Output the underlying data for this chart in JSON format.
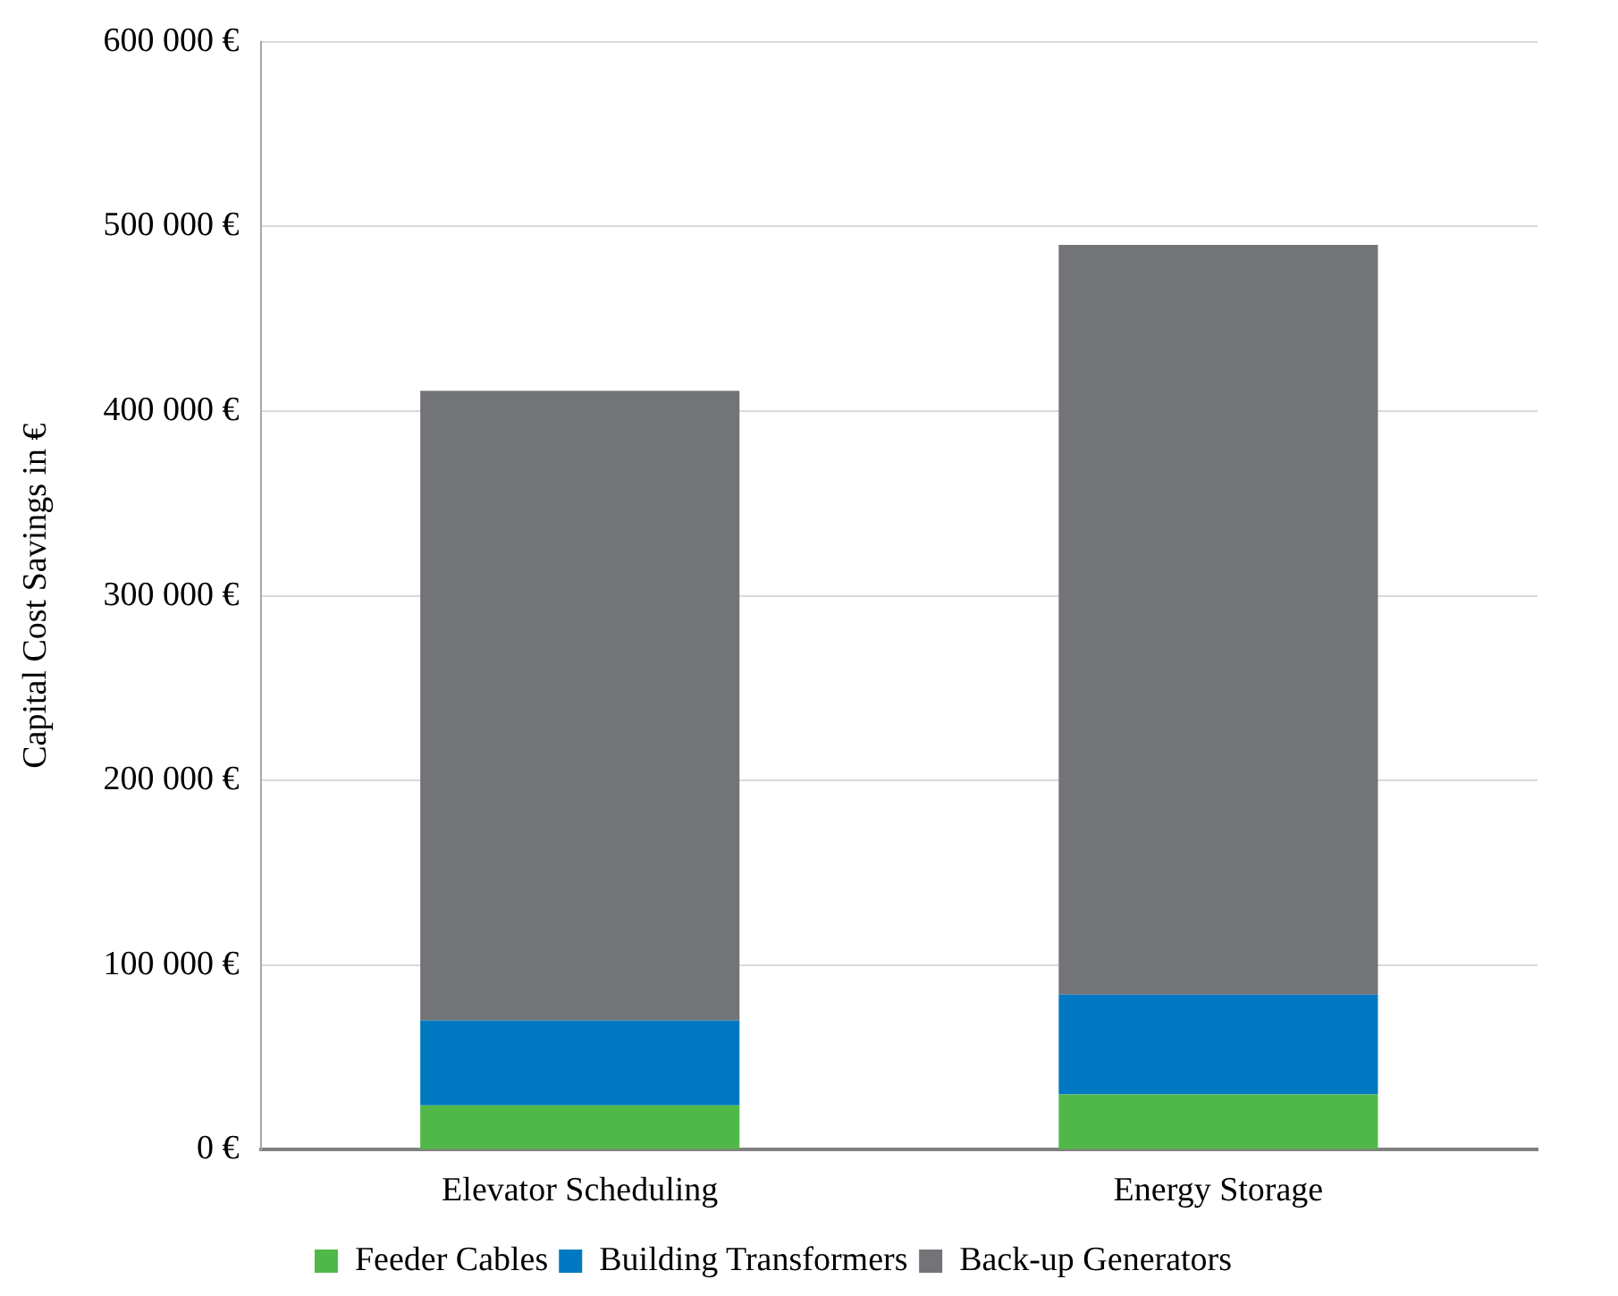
{
  "chart_data": {
    "type": "bar",
    "stacked": true,
    "ylabel": "Capital Cost Savings in €",
    "categories": [
      "Elevator Scheduling",
      "Energy Storage"
    ],
    "series": [
      {
        "name": "Feeder Cables",
        "color": "#50b848",
        "values": [
          24000,
          30000
        ]
      },
      {
        "name": "Building Transformers",
        "color": "#0079c2",
        "values": [
          46000,
          54000
        ]
      },
      {
        "name": "Back-up Generators",
        "color": "#737477",
        "values": [
          341000,
          406000
        ]
      }
    ],
    "ylim": [
      0,
      600000
    ],
    "yticks": [
      {
        "value": 0,
        "label": "0 €"
      },
      {
        "value": 100000,
        "label": "100 000 €"
      },
      {
        "value": 200000,
        "label": "200 000 €"
      },
      {
        "value": 300000,
        "label": "300 000 €"
      },
      {
        "value": 400000,
        "label": "400 000 €"
      },
      {
        "value": 500000,
        "label": "500 000 €"
      },
      {
        "value": 600000,
        "label": "600 000 €"
      }
    ],
    "grid": "y",
    "legend": "bottom"
  }
}
